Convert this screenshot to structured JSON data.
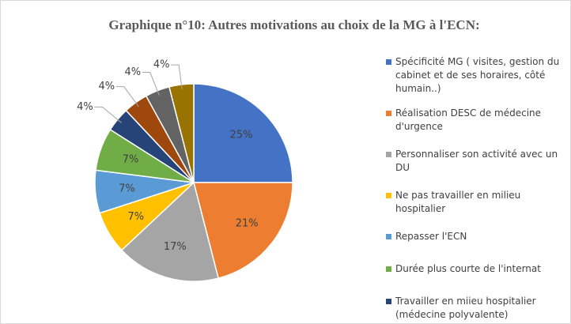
{
  "chart_data": {
    "type": "pie",
    "title": "Graphique n°10: Autres motivations au choix de la MG à l'ECN:",
    "categories": [
      "Spécificité MG ( visites, gestion du cabinet et de ses horaires, côté humain..)",
      "Réalisation DESC de médecine d'urgence",
      "Personnaliser son activité avec un DU",
      "Ne pas travailler en milieu hospitalier",
      "Repasser l'ECN",
      "Durée plus courte de l'internat",
      "Travailler en miieu hospitalier (médecine polyvalente)",
      null,
      null,
      null
    ],
    "values": [
      25,
      21,
      17,
      7,
      7,
      7,
      4,
      4,
      4,
      4
    ],
    "value_labels": [
      "25%",
      "21%",
      "17%",
      "7%",
      "7%",
      "7%",
      "4%",
      "4%",
      "4%",
      "4%"
    ],
    "colors": [
      "#4472c4",
      "#ed7d31",
      "#a5a5a5",
      "#ffc000",
      "#5b9bd5",
      "#70ad47",
      "#264478",
      "#9e480e",
      "#636363",
      "#997300"
    ]
  }
}
